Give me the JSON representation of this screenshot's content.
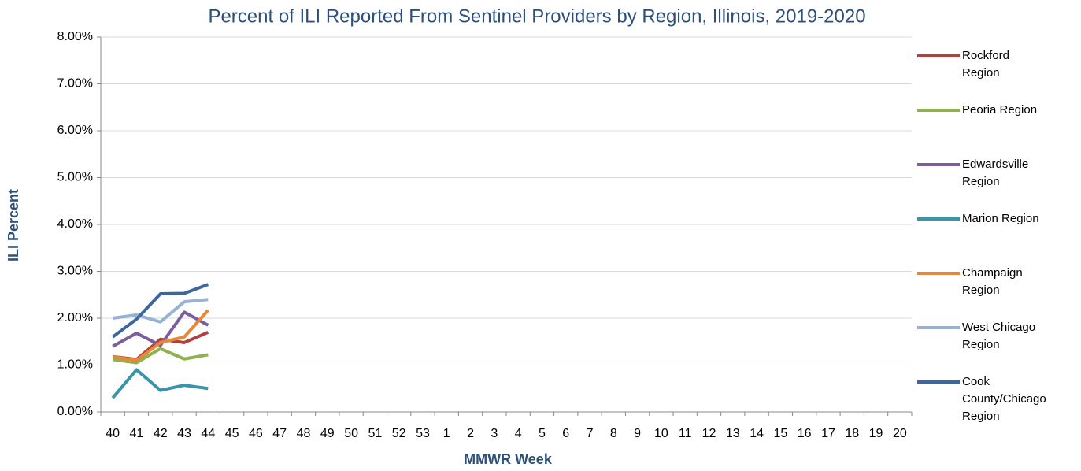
{
  "chart_data": {
    "type": "line",
    "title": "Percent of ILI Reported From Sentinel Providers by Region, Illinois, 2019-2020",
    "x_label": "MMWR Week",
    "y_label": "ILI Percent",
    "categories": [
      "40",
      "41",
      "42",
      "43",
      "44",
      "45",
      "46",
      "47",
      "48",
      "49",
      "50",
      "51",
      "52",
      "53",
      "1",
      "2",
      "3",
      "4",
      "5",
      "6",
      "7",
      "8",
      "9",
      "10",
      "11",
      "12",
      "13",
      "14",
      "15",
      "16",
      "17",
      "18",
      "19",
      "20"
    ],
    "ylim": [
      0,
      8
    ],
    "yticks": [
      {
        "value": 0,
        "label": "0.00%"
      },
      {
        "value": 1,
        "label": "1.00%"
      },
      {
        "value": 2,
        "label": "2.00%"
      },
      {
        "value": 3,
        "label": "3.00%"
      },
      {
        "value": 4,
        "label": "4.00%"
      },
      {
        "value": 5,
        "label": "5.00%"
      },
      {
        "value": 6,
        "label": "6.00%"
      },
      {
        "value": 7,
        "label": "7.00%"
      },
      {
        "value": 8,
        "label": "8.00%"
      }
    ],
    "grid": true,
    "legend": "right",
    "series": [
      {
        "name": "Rockford Region",
        "color": "#b2413a",
        "values": [
          1.18,
          1.12,
          1.55,
          1.48,
          1.7,
          null,
          null,
          null,
          null,
          null,
          null,
          null,
          null,
          null,
          null,
          null,
          null,
          null,
          null,
          null,
          null,
          null,
          null,
          null,
          null,
          null,
          null,
          null,
          null,
          null,
          null,
          null,
          null,
          null
        ]
      },
      {
        "name": "Peoria Region",
        "color": "#8fb14e",
        "values": [
          1.12,
          1.05,
          1.35,
          1.13,
          1.22,
          null,
          null,
          null,
          null,
          null,
          null,
          null,
          null,
          null,
          null,
          null,
          null,
          null,
          null,
          null,
          null,
          null,
          null,
          null,
          null,
          null,
          null,
          null,
          null,
          null,
          null,
          null,
          null,
          null
        ]
      },
      {
        "name": "Edwardsville Region",
        "color": "#7b5f9c",
        "values": [
          1.4,
          1.68,
          1.42,
          2.13,
          1.85,
          null,
          null,
          null,
          null,
          null,
          null,
          null,
          null,
          null,
          null,
          null,
          null,
          null,
          null,
          null,
          null,
          null,
          null,
          null,
          null,
          null,
          null,
          null,
          null,
          null,
          null,
          null,
          null,
          null
        ]
      },
      {
        "name": "Marion Region",
        "color": "#3a95aa",
        "values": [
          0.3,
          0.9,
          0.46,
          0.57,
          0.5,
          null,
          null,
          null,
          null,
          null,
          null,
          null,
          null,
          null,
          null,
          null,
          null,
          null,
          null,
          null,
          null,
          null,
          null,
          null,
          null,
          null,
          null,
          null,
          null,
          null,
          null,
          null,
          null,
          null
        ]
      },
      {
        "name": "Champaign Region",
        "color": "#e8873a",
        "values": [
          1.18,
          1.1,
          1.48,
          1.6,
          2.17,
          null,
          null,
          null,
          null,
          null,
          null,
          null,
          null,
          null,
          null,
          null,
          null,
          null,
          null,
          null,
          null,
          null,
          null,
          null,
          null,
          null,
          null,
          null,
          null,
          null,
          null,
          null,
          null,
          null
        ]
      },
      {
        "name": "West Chicago Region",
        "color": "#98b2d6",
        "values": [
          2.0,
          2.07,
          1.92,
          2.35,
          2.4,
          null,
          null,
          null,
          null,
          null,
          null,
          null,
          null,
          null,
          null,
          null,
          null,
          null,
          null,
          null,
          null,
          null,
          null,
          null,
          null,
          null,
          null,
          null,
          null,
          null,
          null,
          null,
          null,
          null
        ]
      },
      {
        "name": "Cook County/Chicago Region",
        "color": "#3b67a1",
        "values": [
          1.6,
          1.98,
          2.52,
          2.53,
          2.72,
          null,
          null,
          null,
          null,
          null,
          null,
          null,
          null,
          null,
          null,
          null,
          null,
          null,
          null,
          null,
          null,
          null,
          null,
          null,
          null,
          null,
          null,
          null,
          null,
          null,
          null,
          null,
          null,
          null
        ]
      }
    ]
  }
}
